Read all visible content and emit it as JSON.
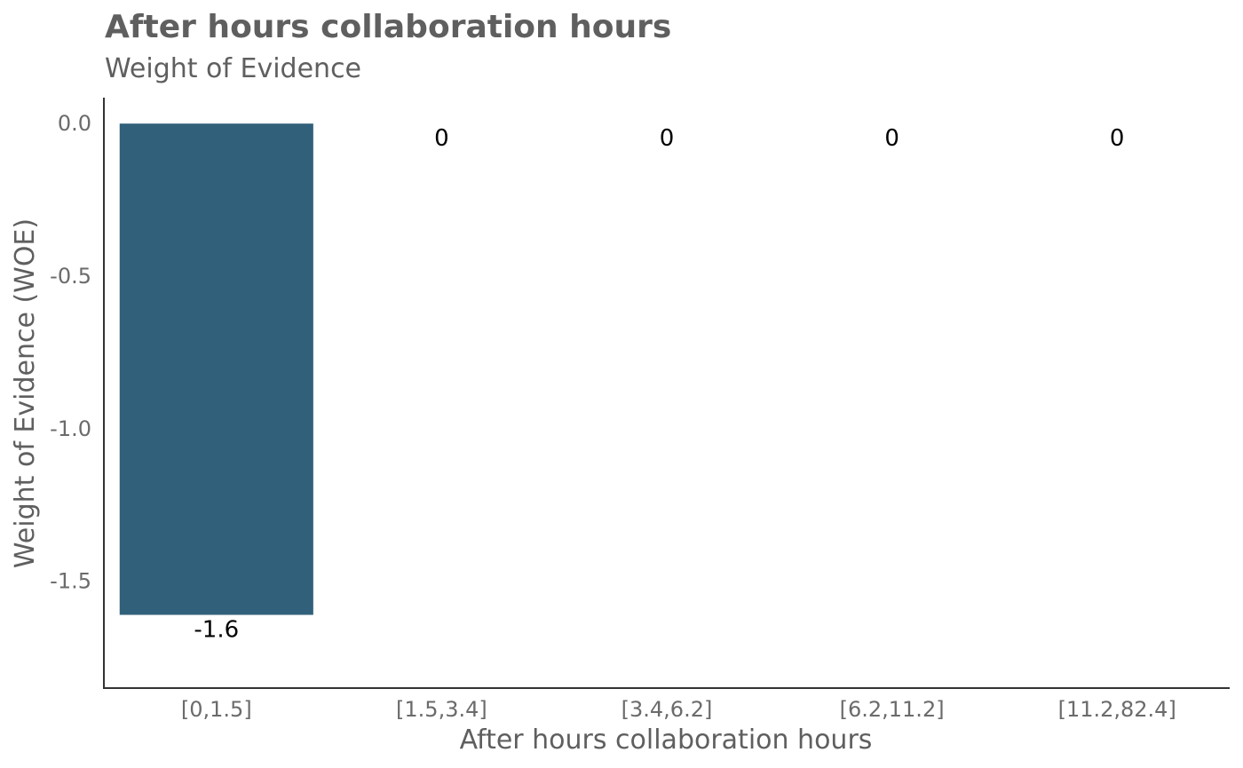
{
  "chart_data": {
    "type": "bar",
    "title": "After hours collaboration hours",
    "subtitle": "Weight of Evidence",
    "xlabel": "After hours collaboration hours",
    "ylabel": "Weight of Evidence (WOE)",
    "categories": [
      "[0,1.5]",
      "[1.5,3.4]",
      "[3.4,6.2]",
      "[6.2,11.2]",
      "[11.2,82.4]"
    ],
    "values": [
      -1.61,
      0,
      0,
      0,
      0
    ],
    "data_labels": [
      "-1.6",
      "0",
      "0",
      "0",
      "0"
    ],
    "ylim": [
      -1.85,
      0.085
    ],
    "yticks": [
      0.0,
      -0.5,
      -1.0,
      -1.5
    ],
    "ytick_labels": [
      "0.0",
      "-0.5",
      "-1.0",
      "-1.5"
    ],
    "grid": false,
    "bar_color": "#31607a"
  }
}
